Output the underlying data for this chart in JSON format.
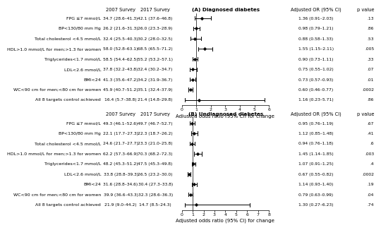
{
  "panel_A": {
    "title": "(A) Diagnosed diabetes",
    "xlabel": "Adjusted odds ratio (95% CI) for change",
    "xlim": [
      0,
      6
    ],
    "xticks": [
      0,
      1,
      2,
      3,
      4,
      5,
      6
    ],
    "rows": [
      {
        "label": "FPG ≤7 mmol/L",
        "s2007": "34.7 (28.6–41.3)",
        "s2017": "42.1 (37.6–46.8)",
        "or": 1.36,
        "ci_lo": 0.91,
        "ci_hi": 2.03,
        "or_text": "1.36 (0.91–2.03)",
        "p": ".13"
      },
      {
        "label": "BP<130/80 mm Hg",
        "s2007": "26.2 (21.6–31.3)",
        "s2017": "26.0 (23.3–28.9)",
        "or": 0.98,
        "ci_lo": 0.79,
        "ci_hi": 1.21,
        "or_text": "0.98 (0.79–1.21)",
        "p": ".86"
      },
      {
        "label": "Total cholesterol <4.5 mmol/L",
        "s2007": "32.4 (25.5–40.3)",
        "s2017": "30.2 (28.0–32.5)",
        "or": 0.88,
        "ci_lo": 0.58,
        "ci_hi": 1.33,
        "or_text": "0.88 (0.58–1.33)",
        "p": ".53"
      },
      {
        "label": "HDL>1.0 mmol/L for men;>1.3 for women",
        "s2007": "58.0 (52.8–63.1)",
        "s2017": "68.5 (65.5–71.2)",
        "or": 1.55,
        "ci_lo": 1.15,
        "ci_hi": 2.11,
        "or_text": "1.55 (1.15–2.11)",
        "p": ".005"
      },
      {
        "label": "Triglycerides<1.7 mmol/L",
        "s2007": "58.5 (54.4–62.5)",
        "s2017": "55.2 (53.2–57.1)",
        "or": 0.9,
        "ci_lo": 0.73,
        "ci_hi": 1.11,
        "or_text": "0.90 (0.73–1.11)",
        "p": ".33"
      },
      {
        "label": "LDL<2.6 mmol/L",
        "s2007": "37.8 (32.2–43.8)",
        "s2017": "32.4 (30.2–34.7)",
        "or": 0.75,
        "ci_lo": 0.55,
        "ci_hi": 1.02,
        "or_text": "0.75 (0.55–1.02)",
        "p": ".07"
      },
      {
        "label": "BMI<24",
        "s2007": "41.3 (35.6–47.2)",
        "s2017": "34.2 (31.9–36.7)",
        "or": 0.73,
        "ci_lo": 0.57,
        "ci_hi": 0.93,
        "or_text": "0.73 (0.57–0.93)",
        "p": ".01"
      },
      {
        "label": "WC<90 cm for men;<80 cm for women",
        "s2007": "45.9 (40.7–51.2)",
        "s2017": "35.1 (32.4–37.9)",
        "or": 0.6,
        "ci_lo": 0.46,
        "ci_hi": 0.77,
        "or_text": "0.60 (0.46–0.77)",
        "p": ".0002"
      },
      {
        "label": "All 8 targets control achieved",
        "s2007": "16.4 (5.7–38.8)",
        "s2017": "21.4 (14.8–29.8)",
        "or": 1.16,
        "ci_lo": 0.23,
        "ci_hi": 5.71,
        "or_text": "1.16 (0.23–5.71)",
        "p": ".86"
      }
    ]
  },
  "panel_B": {
    "title": "(B) Undiagnosed diabetes",
    "xlabel": "Adjusted odds ratio (95% CI) for change",
    "xlim": [
      0,
      8
    ],
    "xticks": [
      0,
      1,
      2,
      3,
      4,
      5,
      6,
      7,
      8
    ],
    "rows": [
      {
        "label": "FPG ≤7 mmol/L",
        "s2007": "49.3 (46.1–52.6)",
        "s2017": "49.7 (46.7–52.7)",
        "or": 0.95,
        "ci_lo": 0.76,
        "ci_hi": 1.19,
        "or_text": "0.95 (0.76–1.19)",
        "p": ".67"
      },
      {
        "label": "BP<130/80 mm Hg",
        "s2007": "22.1 (17.7–27.3)",
        "s2017": "22.3 (18.7–26.2)",
        "or": 1.12,
        "ci_lo": 0.85,
        "ci_hi": 1.48,
        "or_text": "1.12 (0.85–1.48)",
        "p": ".41"
      },
      {
        "label": "Total cholesterol <4.5 mmol/L",
        "s2007": "24.6 (21.7–27.7)",
        "s2017": "23.3 (21.0–25.8)",
        "or": 0.94,
        "ci_lo": 0.76,
        "ci_hi": 1.18,
        "or_text": "0.94 (0.76–1.18)",
        "p": ".6"
      },
      {
        "label": "HDL>1.0 mmol/L for men;>1.3 for women",
        "s2007": "62.2 (57.3–66.9)",
        "s2017": "70.3 (68.2–72.3)",
        "or": 1.45,
        "ci_lo": 1.14,
        "ci_hi": 1.85,
        "or_text": "1.45 (1.14–1.85)",
        "p": ".003"
      },
      {
        "label": "Triglycerides<1.7 mmol/L",
        "s2007": "48.2 (45.3–51.2)",
        "s2017": "47.5 (45.3–49.8)",
        "or": 1.07,
        "ci_lo": 0.91,
        "ci_hi": 1.25,
        "or_text": "1.07 (0.91–1.25)",
        "p": ".4"
      },
      {
        "label": "LDL<2.6 mmol/L",
        "s2007": "33.8 (28.8–39.3)",
        "s2017": "26.5 (23.2–30.0)",
        "or": 0.67,
        "ci_lo": 0.55,
        "ci_hi": 0.82,
        "or_text": "0.67 (0.55–0.82)",
        "p": ".0002"
      },
      {
        "label": "BMI<24",
        "s2007": "31.6 (28.8–34.6)",
        "s2017": "30.4 (27.3–33.8)",
        "or": 1.14,
        "ci_lo": 0.93,
        "ci_hi": 1.4,
        "or_text": "1.14 (0.93–1.40)",
        "p": ".19"
      },
      {
        "label": "WC<90 cm for men;<80 cm for women",
        "s2007": "39.9 (36.6–43.3)",
        "s2017": "32.3 (28.6–36.3)",
        "or": 0.79,
        "ci_lo": 0.63,
        "ci_hi": 0.99,
        "or_text": "0.79 (0.63–0.99)",
        "p": ".04"
      },
      {
        "label": "All 8 targets control achieved",
        "s2007": "21.9 (9.0–44.2)",
        "s2017": "14.7 (8.5–24.3)",
        "or": 1.3,
        "ci_lo": 0.27,
        "ci_hi": 6.23,
        "or_text": "1.30 (0.27–6.23)",
        "p": ".74"
      }
    ]
  },
  "fs_label": 4.5,
  "fs_data": 4.3,
  "fs_header": 4.8,
  "fs_title": 5.2,
  "fs_xlabel": 5.0,
  "fs_tick": 4.5
}
